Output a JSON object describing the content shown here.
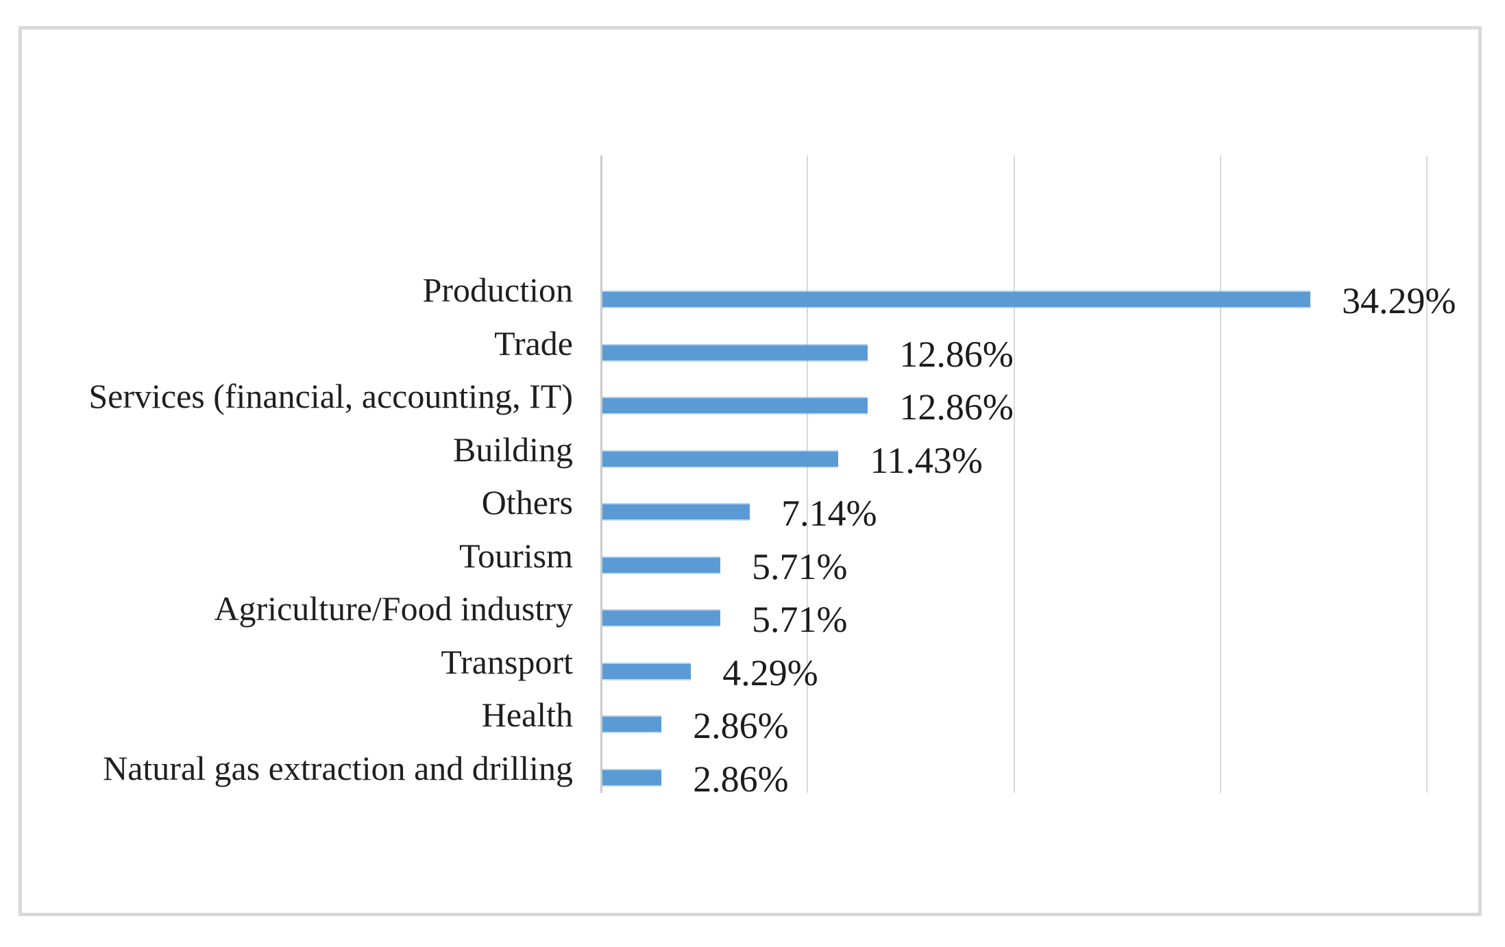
{
  "figure": {
    "background_color": "#ffffff",
    "border_color": "#d9d9d9"
  },
  "chart_data": {
    "type": "bar",
    "orientation": "horizontal",
    "title": "",
    "xlabel": "",
    "ylabel": "",
    "categories": [
      "Production",
      "Trade",
      "Services (financial, accounting, IT)",
      "Building",
      "Others",
      "Tourism",
      "Agriculture/Food industry",
      "Transport",
      "Health",
      "Natural gas extraction and drilling"
    ],
    "values": [
      34.29,
      12.86,
      12.86,
      11.43,
      7.14,
      5.71,
      5.71,
      4.29,
      2.86,
      2.86
    ],
    "data_labels": [
      "34.29%",
      "12.86%",
      "12.86%",
      "11.43%",
      "7.14%",
      "5.71%",
      "5.71%",
      "4.29%",
      "2.86%",
      "2.86%"
    ],
    "xlim": [
      0,
      40
    ],
    "gridline_step": 10,
    "grid": true,
    "legend": false,
    "axis_tick_labels_visible": false,
    "bar_color": "#5b9bd5",
    "text_color": "#1f1f1f",
    "gridline_color": "#d9d9d9",
    "axis_line_color": "#c9c9c9"
  }
}
